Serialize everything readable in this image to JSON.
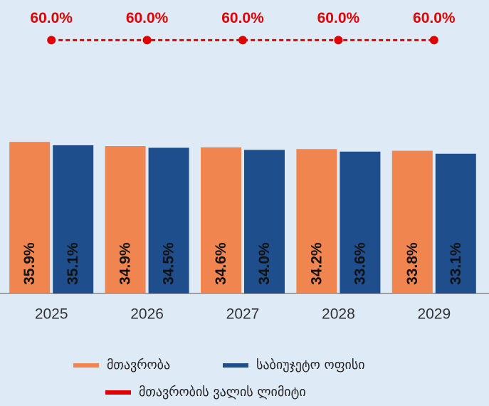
{
  "chart_data": {
    "type": "bar",
    "categories": [
      "2025",
      "2026",
      "2027",
      "2028",
      "2029"
    ],
    "series": [
      {
        "name": "მთავრობა",
        "type": "bar",
        "color": "#f0854f",
        "values": [
          35.9,
          34.9,
          34.6,
          34.2,
          33.8
        ],
        "value_labels": [
          "35.9%",
          "34.9%",
          "34.6%",
          "34.2%",
          "33.8%"
        ]
      },
      {
        "name": "საბიუჯეტო ოფისი",
        "type": "bar",
        "color": "#1f4e8c",
        "values": [
          35.1,
          34.5,
          34.0,
          33.6,
          33.1
        ],
        "value_labels": [
          "35.1%",
          "34.5%",
          "34.0%",
          "33.6%",
          "33.1%"
        ]
      },
      {
        "name": "მთავრობის ვალის ლიმიტი",
        "type": "line",
        "color": "#e00000",
        "values": [
          60,
          60,
          60,
          60,
          60
        ],
        "value_labels": [
          "60.0%",
          "60.0%",
          "60.0%",
          "60.0%",
          "60.0%"
        ]
      }
    ],
    "ylim": [
      0,
      69.5
    ]
  }
}
